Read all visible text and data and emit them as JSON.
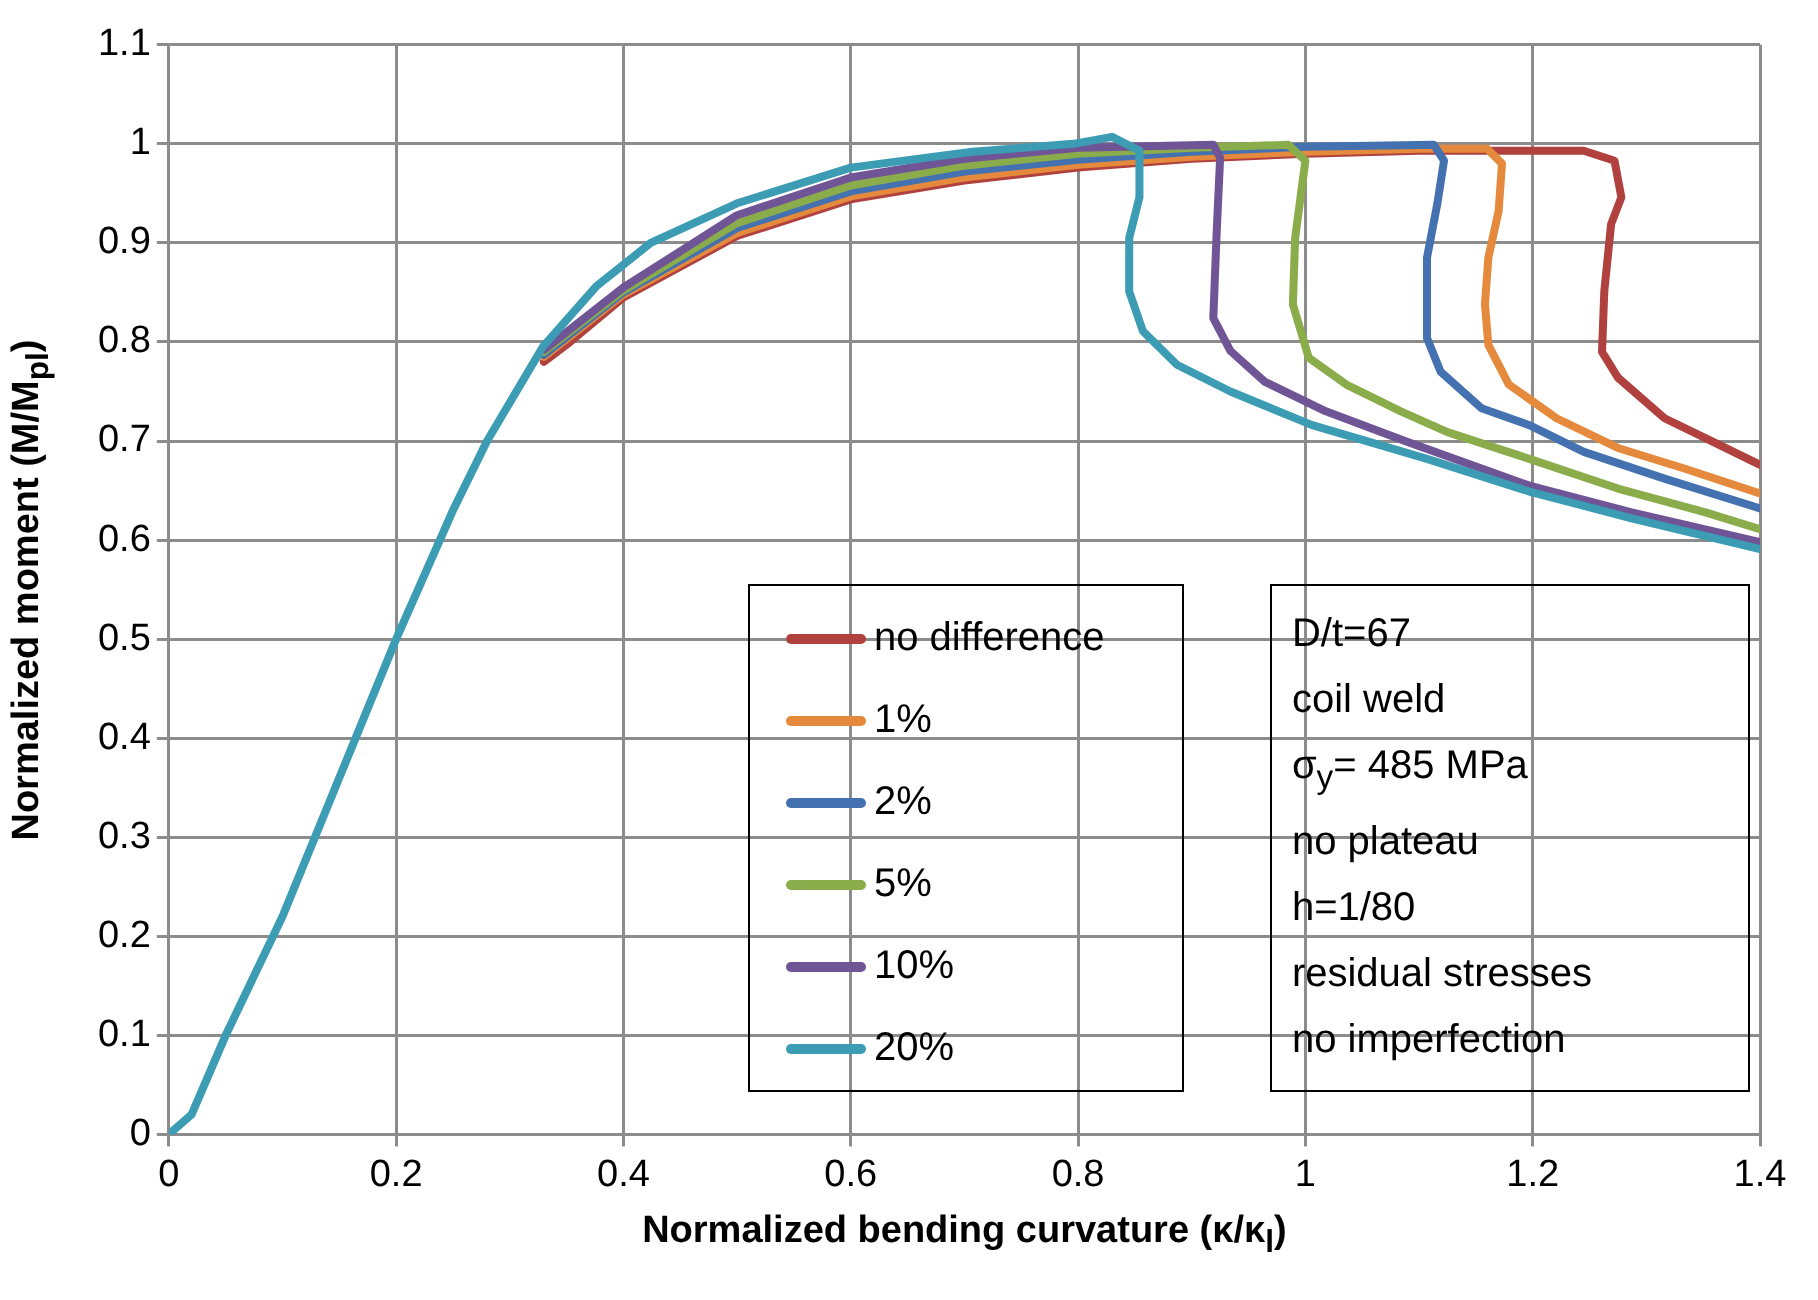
{
  "chart_data": {
    "type": "line",
    "xlabel": "Normalized bending curvature (κ/κ$_{l}$)",
    "ylabel": "Normalized moment (M/M$_{pl}$)",
    "xlim": [
      0,
      1.4
    ],
    "xticks": [
      0,
      0.2,
      0.4,
      0.6,
      0.8,
      1,
      1.2,
      1.4
    ],
    "ylim": [
      0,
      1.1
    ],
    "yticks": [
      0,
      0.1,
      0.2,
      0.3,
      0.4,
      0.5,
      0.6,
      0.7,
      0.8,
      0.9,
      1,
      1.1
    ],
    "grid": true,
    "legend": "bottom right",
    "marker": "none",
    "line_style": "solid",
    "annotations": [
      "D/t=67",
      "coil weld",
      "σ$_{y}$= 485 MPa",
      "no plateau",
      "h=1/80",
      "residual stresses",
      "no imperfection"
    ],
    "series": [
      {
        "name": "no difference",
        "color": "#b0413e",
        "x": [
          0.33,
          0.353,
          0.4,
          0.5,
          0.6,
          0.7,
          0.8,
          0.9,
          1.0,
          1.1,
          1.245,
          1.272,
          1.278,
          1.269,
          1.263,
          1.261,
          1.275,
          1.316,
          1.352,
          1.4
        ],
        "values": [
          0.78,
          0.8,
          0.845,
          0.907,
          0.944,
          0.963,
          0.976,
          0.985,
          0.99,
          0.993,
          0.993,
          0.983,
          0.946,
          0.919,
          0.851,
          0.79,
          0.764,
          0.723,
          0.703,
          0.676
        ]
      },
      {
        "name": "1%",
        "color": "#e58a3c",
        "x": [
          0.33,
          0.4,
          0.5,
          0.6,
          0.7,
          0.8,
          0.9,
          1.0,
          1.1,
          1.16,
          1.173,
          1.17,
          1.161,
          1.158,
          1.161,
          1.179,
          1.221,
          1.275,
          1.334,
          1.4
        ],
        "values": [
          0.785,
          0.848,
          0.91,
          0.947,
          0.966,
          0.979,
          0.987,
          0.992,
          0.995,
          0.995,
          0.98,
          0.932,
          0.885,
          0.838,
          0.797,
          0.757,
          0.723,
          0.693,
          0.672,
          0.647
        ]
      },
      {
        "name": "2%",
        "color": "#4472b0",
        "x": [
          0.33,
          0.4,
          0.5,
          0.6,
          0.7,
          0.8,
          0.9,
          1.0,
          1.113,
          1.122,
          1.116,
          1.107,
          1.107,
          1.119,
          1.155,
          1.197,
          1.245,
          1.316,
          1.4
        ],
        "values": [
          0.787,
          0.85,
          0.915,
          0.952,
          0.972,
          0.984,
          0.992,
          0.997,
          0.999,
          0.983,
          0.939,
          0.885,
          0.804,
          0.77,
          0.733,
          0.716,
          0.689,
          0.662,
          0.632
        ]
      },
      {
        "name": "5%",
        "color": "#8aac4a",
        "x": [
          0.33,
          0.4,
          0.5,
          0.6,
          0.7,
          0.8,
          0.9,
          0.985,
          1.0,
          0.991,
          0.989,
          1.003,
          1.036,
          1.084,
          1.125,
          1.197,
          1.275,
          1.352,
          1.4
        ],
        "values": [
          0.79,
          0.852,
          0.92,
          0.958,
          0.978,
          0.99,
          0.996,
          0.999,
          0.983,
          0.905,
          0.838,
          0.784,
          0.757,
          0.73,
          0.709,
          0.682,
          0.652,
          0.628,
          0.611
        ]
      },
      {
        "name": "10%",
        "color": "#6f5496",
        "x": [
          0.33,
          0.4,
          0.5,
          0.6,
          0.7,
          0.8,
          0.919,
          0.925,
          0.922,
          0.919,
          0.934,
          0.964,
          1.018,
          1.09,
          1.197,
          1.287,
          1.4
        ],
        "values": [
          0.792,
          0.855,
          0.928,
          0.966,
          0.985,
          0.996,
          0.999,
          0.986,
          0.912,
          0.824,
          0.791,
          0.76,
          0.73,
          0.699,
          0.655,
          0.628,
          0.598
        ]
      },
      {
        "name": "20%",
        "color": "#3c9cb4",
        "x": [
          0,
          0.02,
          0.05,
          0.1,
          0.15,
          0.2,
          0.25,
          0.28,
          0.329,
          0.376,
          0.424,
          0.5,
          0.6,
          0.707,
          0.796,
          0.83,
          0.854,
          0.854,
          0.845,
          0.845,
          0.857,
          0.887,
          0.934,
          1.006,
          1.107,
          1.197,
          1.287,
          1.4
        ],
        "values": [
          0,
          0.02,
          0.1,
          0.22,
          0.36,
          0.5,
          0.63,
          0.7,
          0.795,
          0.856,
          0.9,
          0.94,
          0.976,
          0.992,
          1.0,
          1.007,
          0.993,
          0.946,
          0.905,
          0.851,
          0.811,
          0.777,
          0.75,
          0.716,
          0.682,
          0.649,
          0.622,
          0.591
        ]
      }
    ]
  }
}
